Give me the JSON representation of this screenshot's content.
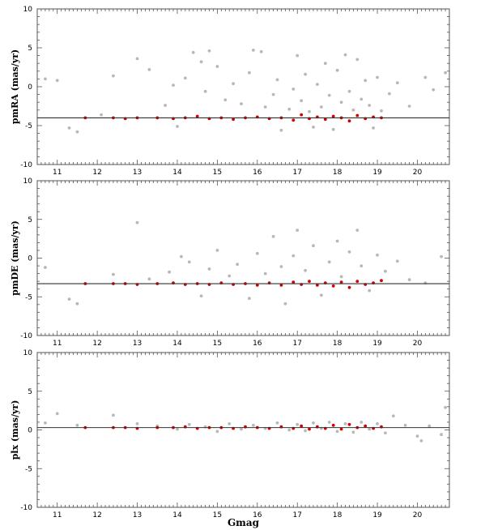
{
  "chart_data": [
    {
      "type": "scatter",
      "ylabel": "pmRA (mas/yr)",
      "xlim": [
        10.5,
        20.8
      ],
      "ylim": [
        -10,
        10
      ],
      "xticks": [
        "11",
        "12",
        "13",
        "14",
        "15",
        "16",
        "17",
        "18",
        "19",
        "20"
      ],
      "yticks": [
        "10",
        "5",
        "0",
        "-5",
        "-10"
      ],
      "reference_line": -4.0,
      "series": [
        {
          "color": "#b8b8b8",
          "points": [
            [
              10.7,
              1.0
            ],
            [
              11.0,
              0.8
            ],
            [
              11.3,
              -5.3
            ],
            [
              11.5,
              -5.8
            ],
            [
              12.1,
              -3.6
            ],
            [
              12.4,
              1.4
            ],
            [
              13.0,
              3.6
            ],
            [
              13.3,
              2.2
            ],
            [
              13.7,
              -2.4
            ],
            [
              13.9,
              0.2
            ],
            [
              14.0,
              -5.1
            ],
            [
              14.2,
              1.1
            ],
            [
              14.4,
              4.4
            ],
            [
              14.6,
              3.2
            ],
            [
              14.7,
              -0.6
            ],
            [
              14.8,
              4.6
            ],
            [
              15.0,
              2.6
            ],
            [
              15.2,
              -1.7
            ],
            [
              15.4,
              0.4
            ],
            [
              15.6,
              -2.2
            ],
            [
              15.8,
              1.8
            ],
            [
              15.9,
              4.7
            ],
            [
              16.1,
              4.5
            ],
            [
              16.2,
              -2.6
            ],
            [
              16.4,
              -1.0
            ],
            [
              16.5,
              0.9
            ],
            [
              16.6,
              -5.6
            ],
            [
              16.8,
              -2.9
            ],
            [
              16.9,
              -0.3
            ],
            [
              17.0,
              4.0
            ],
            [
              17.1,
              -1.8
            ],
            [
              17.2,
              1.6
            ],
            [
              17.3,
              -3.2
            ],
            [
              17.4,
              -5.2
            ],
            [
              17.5,
              0.3
            ],
            [
              17.6,
              -2.6
            ],
            [
              17.7,
              3.0
            ],
            [
              17.8,
              -1.1
            ],
            [
              17.9,
              -5.5
            ],
            [
              18.0,
              2.1
            ],
            [
              18.1,
              -2.0
            ],
            [
              18.2,
              4.1
            ],
            [
              18.3,
              -0.6
            ],
            [
              18.4,
              -3.0
            ],
            [
              18.5,
              3.5
            ],
            [
              18.6,
              -1.6
            ],
            [
              18.7,
              0.8
            ],
            [
              18.8,
              -2.4
            ],
            [
              18.9,
              -5.3
            ],
            [
              19.0,
              1.2
            ],
            [
              19.1,
              -3.1
            ],
            [
              19.3,
              -0.9
            ],
            [
              19.5,
              0.5
            ],
            [
              19.8,
              -2.5
            ],
            [
              20.2,
              1.2
            ],
            [
              20.4,
              -0.4
            ],
            [
              20.7,
              1.8
            ]
          ]
        },
        {
          "color": "#d40000",
          "points": [
            [
              11.7,
              -4.0
            ],
            [
              12.4,
              -4.0
            ],
            [
              12.7,
              -4.1
            ],
            [
              13.0,
              -4.0
            ],
            [
              13.5,
              -4.0
            ],
            [
              13.9,
              -4.1
            ],
            [
              14.2,
              -4.0
            ],
            [
              14.5,
              -3.8
            ],
            [
              14.8,
              -4.1
            ],
            [
              15.1,
              -4.0
            ],
            [
              15.4,
              -4.2
            ],
            [
              15.7,
              -4.0
            ],
            [
              16.0,
              -3.9
            ],
            [
              16.3,
              -4.1
            ],
            [
              16.6,
              -4.0
            ],
            [
              16.9,
              -4.3
            ],
            [
              17.1,
              -3.6
            ],
            [
              17.3,
              -4.1
            ],
            [
              17.5,
              -3.9
            ],
            [
              17.7,
              -4.2
            ],
            [
              17.9,
              -3.8
            ],
            [
              18.1,
              -4.0
            ],
            [
              18.3,
              -4.4
            ],
            [
              18.5,
              -3.7
            ],
            [
              18.7,
              -4.1
            ],
            [
              18.9,
              -3.9
            ],
            [
              19.1,
              -4.0
            ]
          ]
        }
      ]
    },
    {
      "type": "scatter",
      "ylabel": "pmDE (mas/yr)",
      "xlim": [
        10.5,
        20.8
      ],
      "ylim": [
        -10,
        10
      ],
      "xticks": [
        "11",
        "12",
        "13",
        "14",
        "15",
        "16",
        "17",
        "18",
        "19",
        "20"
      ],
      "yticks": [
        "10",
        "5",
        "0",
        "-5",
        "-10"
      ],
      "reference_line": -3.3,
      "series": [
        {
          "color": "#b8b8b8",
          "points": [
            [
              10.7,
              -1.2
            ],
            [
              11.3,
              -5.3
            ],
            [
              11.5,
              -5.9
            ],
            [
              12.4,
              -2.1
            ],
            [
              13.0,
              4.6
            ],
            [
              13.3,
              -2.7
            ],
            [
              13.8,
              -1.8
            ],
            [
              14.1,
              0.2
            ],
            [
              14.3,
              -0.5
            ],
            [
              14.6,
              -4.9
            ],
            [
              14.8,
              -1.4
            ],
            [
              15.0,
              1.0
            ],
            [
              15.3,
              -2.3
            ],
            [
              15.5,
              -0.8
            ],
            [
              15.8,
              -5.2
            ],
            [
              16.0,
              0.6
            ],
            [
              16.2,
              -2.0
            ],
            [
              16.4,
              2.8
            ],
            [
              16.6,
              -1.1
            ],
            [
              16.7,
              -5.9
            ],
            [
              16.9,
              0.3
            ],
            [
              17.0,
              3.6
            ],
            [
              17.2,
              -1.6
            ],
            [
              17.4,
              1.6
            ],
            [
              17.6,
              -4.8
            ],
            [
              17.8,
              -0.5
            ],
            [
              18.0,
              2.2
            ],
            [
              18.1,
              -2.4
            ],
            [
              18.3,
              0.8
            ],
            [
              18.5,
              3.6
            ],
            [
              18.6,
              -1.0
            ],
            [
              18.8,
              -4.2
            ],
            [
              19.0,
              0.4
            ],
            [
              19.2,
              -1.7
            ],
            [
              19.5,
              -0.4
            ],
            [
              19.8,
              -2.8
            ],
            [
              20.2,
              -3.2
            ],
            [
              20.6,
              0.2
            ]
          ]
        },
        {
          "color": "#d40000",
          "points": [
            [
              11.7,
              -3.3
            ],
            [
              12.4,
              -3.3
            ],
            [
              12.7,
              -3.3
            ],
            [
              13.0,
              -3.4
            ],
            [
              13.5,
              -3.3
            ],
            [
              13.9,
              -3.2
            ],
            [
              14.2,
              -3.4
            ],
            [
              14.5,
              -3.3
            ],
            [
              14.8,
              -3.4
            ],
            [
              15.1,
              -3.2
            ],
            [
              15.4,
              -3.4
            ],
            [
              15.7,
              -3.3
            ],
            [
              16.0,
              -3.5
            ],
            [
              16.3,
              -3.2
            ],
            [
              16.6,
              -3.5
            ],
            [
              16.9,
              -3.1
            ],
            [
              17.1,
              -3.4
            ],
            [
              17.3,
              -3.0
            ],
            [
              17.5,
              -3.5
            ],
            [
              17.7,
              -3.2
            ],
            [
              17.9,
              -3.6
            ],
            [
              18.1,
              -3.1
            ],
            [
              18.3,
              -3.8
            ],
            [
              18.5,
              -3.0
            ],
            [
              18.7,
              -3.4
            ],
            [
              18.9,
              -3.2
            ],
            [
              19.1,
              -2.9
            ]
          ]
        }
      ]
    },
    {
      "type": "scatter",
      "ylabel": "plx (mas/yr)",
      "xlabel": "Gmag",
      "xlim": [
        10.5,
        20.8
      ],
      "ylim": [
        -10,
        10
      ],
      "xticks": [
        "11",
        "12",
        "13",
        "14",
        "15",
        "16",
        "17",
        "18",
        "19",
        "20"
      ],
      "yticks": [
        "10",
        "5",
        "0",
        "-5",
        "-10"
      ],
      "reference_line": 0.3,
      "series": [
        {
          "color": "#b8b8b8",
          "points": [
            [
              10.7,
              0.9
            ],
            [
              11.0,
              2.1
            ],
            [
              11.5,
              0.6
            ],
            [
              12.4,
              1.9
            ],
            [
              13.0,
              0.8
            ],
            [
              13.5,
              0.5
            ],
            [
              14.0,
              0.1
            ],
            [
              14.3,
              0.7
            ],
            [
              14.7,
              0.4
            ],
            [
              15.0,
              -0.2
            ],
            [
              15.3,
              0.8
            ],
            [
              15.6,
              0.1
            ],
            [
              15.9,
              0.6
            ],
            [
              16.2,
              0.2
            ],
            [
              16.5,
              0.9
            ],
            [
              16.8,
              0.0
            ],
            [
              17.0,
              0.7
            ],
            [
              17.2,
              -0.1
            ],
            [
              17.4,
              0.9
            ],
            [
              17.6,
              0.2
            ],
            [
              17.8,
              1.0
            ],
            [
              18.0,
              -0.2
            ],
            [
              18.2,
              0.8
            ],
            [
              18.4,
              -0.3
            ],
            [
              18.6,
              1.0
            ],
            [
              18.8,
              0.1
            ],
            [
              19.0,
              0.8
            ],
            [
              19.2,
              -0.4
            ],
            [
              19.4,
              1.8
            ],
            [
              19.7,
              0.6
            ],
            [
              20.0,
              -0.8
            ],
            [
              20.1,
              -1.4
            ],
            [
              20.3,
              0.5
            ],
            [
              20.6,
              -0.6
            ],
            [
              20.7,
              2.9
            ]
          ]
        },
        {
          "color": "#d40000",
          "points": [
            [
              11.7,
              0.3
            ],
            [
              12.4,
              0.3
            ],
            [
              12.7,
              0.3
            ],
            [
              13.0,
              0.2
            ],
            [
              13.5,
              0.3
            ],
            [
              13.9,
              0.3
            ],
            [
              14.2,
              0.4
            ],
            [
              14.5,
              0.2
            ],
            [
              14.8,
              0.3
            ],
            [
              15.1,
              0.3
            ],
            [
              15.4,
              0.2
            ],
            [
              15.7,
              0.4
            ],
            [
              16.0,
              0.3
            ],
            [
              16.3,
              0.2
            ],
            [
              16.6,
              0.4
            ],
            [
              16.9,
              0.2
            ],
            [
              17.1,
              0.5
            ],
            [
              17.3,
              0.1
            ],
            [
              17.5,
              0.4
            ],
            [
              17.7,
              0.2
            ],
            [
              17.9,
              0.6
            ],
            [
              18.1,
              0.1
            ],
            [
              18.3,
              0.7
            ],
            [
              18.5,
              0.3
            ],
            [
              18.7,
              0.5
            ],
            [
              18.9,
              0.2
            ],
            [
              19.1,
              0.4
            ]
          ]
        }
      ]
    }
  ]
}
